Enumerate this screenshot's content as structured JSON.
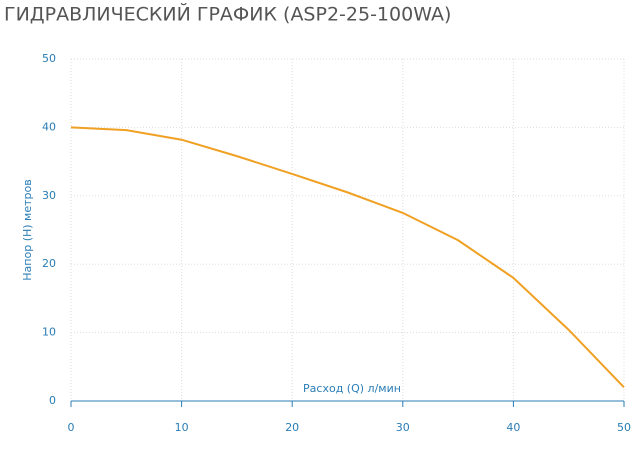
{
  "chart_data": {
    "type": "line",
    "title": "ГИДРАВЛИЧЕСКИЙ ГРАФИК (ASP2-25-100WA)",
    "x_label": "Расход (Q) л/мин",
    "y_label": "Напор (H) метров",
    "x": [
      0,
      5,
      10,
      15,
      20,
      25,
      30,
      35,
      40,
      45,
      50
    ],
    "series": [
      {
        "name": "ASP2-25-100WA",
        "color": "#f0a023",
        "values": [
          40,
          39.6,
          38.2,
          35.8,
          33.2,
          30.5,
          27.5,
          23.5,
          18,
          10.4,
          2
        ]
      }
    ],
    "xlim": [
      0,
      50
    ],
    "xticks": [
      0,
      10,
      20,
      30,
      40,
      50
    ],
    "ylim": [
      0,
      50
    ],
    "yticks": [
      0,
      10,
      20,
      30,
      40,
      50
    ],
    "grid": true
  }
}
